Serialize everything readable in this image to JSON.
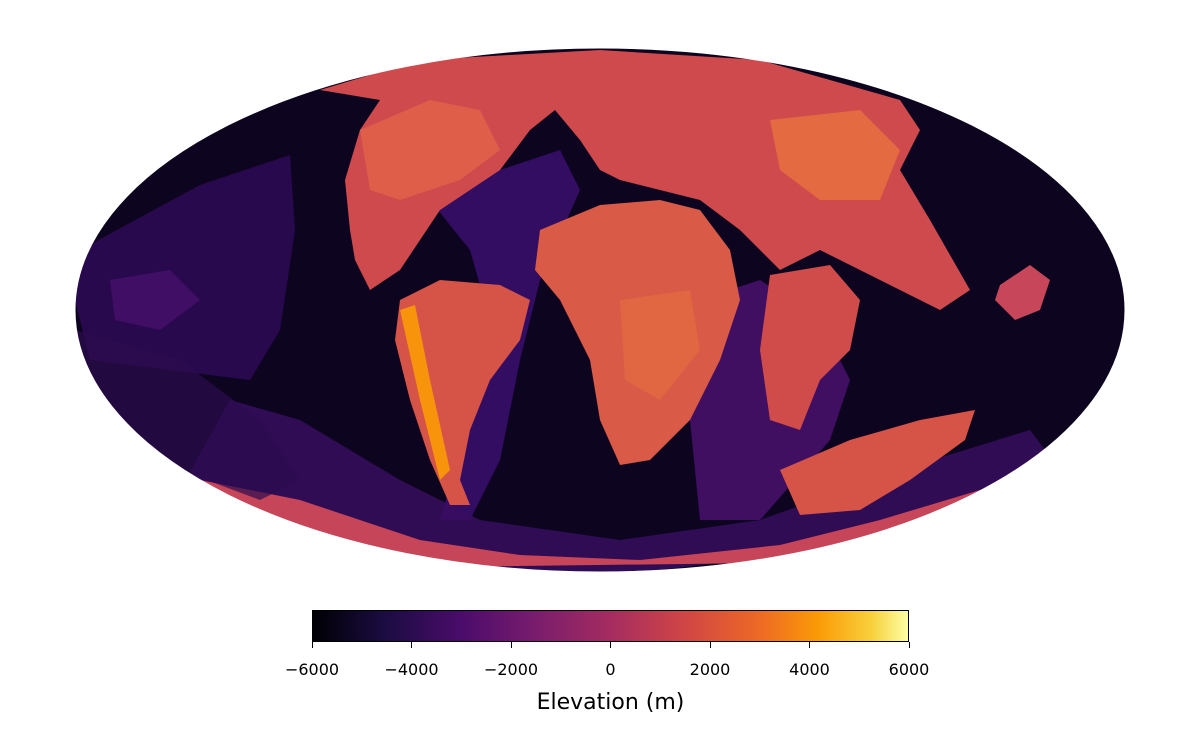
{
  "figure": {
    "projection": "Mollweide",
    "colormap": "inferno"
  },
  "colorbar": {
    "label": "Elevation (m)",
    "range": [
      -6000,
      6000
    ],
    "ticks": [
      "−6000",
      "−4000",
      "−2000",
      "0",
      "2000",
      "4000",
      "6000"
    ]
  },
  "colors": {
    "ocean_deep": "#0d0520",
    "ocean_mid": "#3b0f6f",
    "shelf": "#7a1f6e",
    "land_low": "#c23a5a",
    "land": "#d9554a",
    "land_high": "#f07e2a",
    "peak": "#fbb32c"
  }
}
